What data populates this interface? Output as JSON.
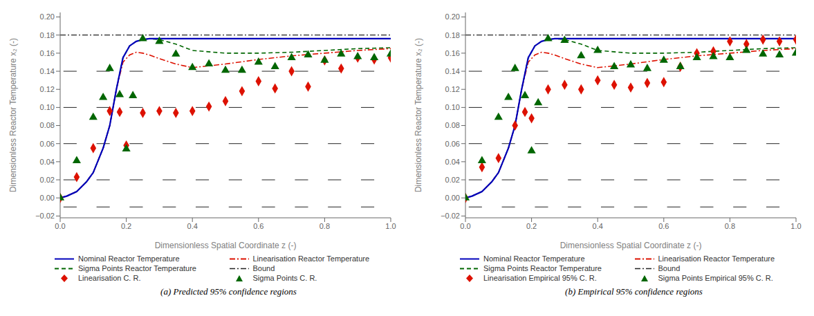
{
  "chart_data": [
    {
      "type": "line",
      "caption": "(a)  Predicted 95% confidence regions",
      "xlabel": "Dimensionless Spatial Coordinate z (-)",
      "ylabel": "Dimensionless Reactor Temperature x₂ (-)",
      "xlim": [
        0.0,
        1.0
      ],
      "ylim": [
        -0.022,
        0.205
      ],
      "xticks": [
        {
          "value": 0,
          "label": "0.0"
        },
        0.2,
        0.4,
        0.6,
        0.8,
        {
          "value": 1,
          "label": "1.0"
        }
      ],
      "yticks": [
        {
          "value": -0.02,
          "label": "−0.02"
        },
        {
          "value": 0,
          "label": "0.00"
        },
        0.02,
        0.04,
        0.06,
        0.08,
        {
          "value": 0.1,
          "label": "0.10"
        },
        0.12,
        0.14,
        0.16,
        0.18,
        {
          "value": 0.2,
          "label": "0.20"
        }
      ],
      "grid": false,
      "legend": "bottom",
      "series": [
        {
          "name": "Nominal Reactor Temperature",
          "type": "line",
          "color": "#0000BB",
          "line_style": "solid",
          "x": [
            0.0,
            0.02,
            0.05,
            0.08,
            0.1,
            0.13,
            0.15,
            0.17,
            0.19,
            0.21,
            0.23,
            0.25,
            0.27,
            0.3,
            0.35,
            0.4,
            0.5,
            0.6,
            0.7,
            0.8,
            0.9,
            1.0
          ],
          "values": [
            0.0,
            0.002,
            0.007,
            0.018,
            0.028,
            0.055,
            0.08,
            0.12,
            0.155,
            0.168,
            0.173,
            0.175,
            0.176,
            0.176,
            0.176,
            0.176,
            0.176,
            0.176,
            0.176,
            0.176,
            0.176,
            0.176
          ]
        },
        {
          "name": "Linearisation Reactor Temperature",
          "type": "line",
          "color": "#DD1100",
          "line_style": "dashdot",
          "x": [
            0.0,
            0.02,
            0.05,
            0.08,
            0.1,
            0.13,
            0.15,
            0.17,
            0.19,
            0.21,
            0.23,
            0.25,
            0.27,
            0.3,
            0.35,
            0.4,
            0.5,
            0.6,
            0.7,
            0.8,
            0.9,
            1.0
          ],
          "values": [
            0.0,
            0.002,
            0.007,
            0.018,
            0.028,
            0.055,
            0.08,
            0.12,
            0.15,
            0.158,
            0.161,
            0.16,
            0.158,
            0.154,
            0.148,
            0.144,
            0.148,
            0.153,
            0.157,
            0.16,
            0.163,
            0.165
          ]
        },
        {
          "name": "Sigma Points Reactor Temperature",
          "type": "line",
          "color": "#006600",
          "line_style": "dashed",
          "x": [
            0.0,
            0.02,
            0.05,
            0.08,
            0.1,
            0.13,
            0.15,
            0.17,
            0.19,
            0.21,
            0.23,
            0.25,
            0.27,
            0.3,
            0.35,
            0.4,
            0.5,
            0.6,
            0.7,
            0.8,
            0.9,
            1.0
          ],
          "values": [
            0.0,
            0.002,
            0.007,
            0.018,
            0.028,
            0.055,
            0.08,
            0.12,
            0.155,
            0.168,
            0.173,
            0.175,
            0.176,
            0.175,
            0.17,
            0.163,
            0.16,
            0.16,
            0.161,
            0.163,
            0.165,
            0.166
          ]
        },
        {
          "name": "Bound",
          "type": "bound",
          "color": "#222222",
          "line_style": "dashdot",
          "y": 0.18,
          "rows_y": [
            -0.01,
            0.02,
            0.06,
            0.1,
            0.14
          ],
          "dash_x": [
            [
              0.01,
              0.05
            ],
            [
              0.11,
              0.15
            ],
            [
              0.21,
              0.25
            ],
            [
              0.31,
              0.35
            ],
            [
              0.41,
              0.45
            ],
            [
              0.51,
              0.55
            ],
            [
              0.61,
              0.65
            ],
            [
              0.71,
              0.75
            ],
            [
              0.81,
              0.85
            ],
            [
              0.91,
              0.95
            ]
          ]
        },
        {
          "name": "Linearisation C. R.",
          "type": "scatter",
          "color": "#DD1100",
          "marker": "diamond",
          "x": [
            0.0,
            0.05,
            0.1,
            0.15,
            0.18,
            0.2,
            0.25,
            0.3,
            0.35,
            0.4,
            0.45,
            0.5,
            0.55,
            0.6,
            0.65,
            0.7,
            0.75,
            0.8,
            0.85,
            0.9,
            0.95,
            1.0
          ],
          "values": [
            0.0,
            0.023,
            0.055,
            0.096,
            0.095,
            0.058,
            0.094,
            0.096,
            0.094,
            0.096,
            0.101,
            0.107,
            0.118,
            0.129,
            0.121,
            0.14,
            0.123,
            0.152,
            0.143,
            0.155,
            0.153,
            0.155
          ]
        },
        {
          "name": "Sigma Points C. R.",
          "type": "scatter",
          "color": "#006600",
          "marker": "triangle",
          "x": [
            0.0,
            0.05,
            0.1,
            0.13,
            0.15,
            0.18,
            0.2,
            0.22,
            0.25,
            0.3,
            0.35,
            0.4,
            0.45,
            0.5,
            0.55,
            0.6,
            0.65,
            0.7,
            0.75,
            0.8,
            0.85,
            0.9,
            0.95,
            1.0
          ],
          "values": [
            0.0,
            0.041,
            0.089,
            0.111,
            0.143,
            0.114,
            0.054,
            0.113,
            0.176,
            0.173,
            0.159,
            0.144,
            0.148,
            0.141,
            0.141,
            0.15,
            0.145,
            0.155,
            0.158,
            0.152,
            0.159,
            0.156,
            0.155,
            0.159
          ]
        }
      ]
    },
    {
      "type": "line",
      "caption": "(b)  Empirical 95% confidence regions",
      "xlabel": "Dimensionless Spatial Coordinate z (-)",
      "ylabel": "Dimensionless Reactor Temperature x₂ (-)",
      "xlim": [
        0.0,
        1.0
      ],
      "ylim": [
        -0.022,
        0.205
      ],
      "xticks": [
        {
          "value": 0,
          "label": "0.0"
        },
        0.2,
        0.4,
        0.6,
        0.8,
        {
          "value": 1,
          "label": "1.0"
        }
      ],
      "yticks": [
        {
          "value": -0.02,
          "label": "−0.02"
        },
        {
          "value": 0,
          "label": "0.00"
        },
        0.02,
        0.04,
        0.06,
        0.08,
        {
          "value": 0.1,
          "label": "0.10"
        },
        0.12,
        0.14,
        0.16,
        0.18,
        {
          "value": 0.2,
          "label": "0.20"
        }
      ],
      "grid": false,
      "legend": "bottom",
      "series": [
        {
          "name": "Nominal Reactor Temperature",
          "type": "line",
          "color": "#0000BB",
          "line_style": "solid",
          "x": [
            0.0,
            0.02,
            0.05,
            0.08,
            0.1,
            0.13,
            0.15,
            0.17,
            0.19,
            0.21,
            0.23,
            0.25,
            0.27,
            0.3,
            0.35,
            0.4,
            0.5,
            0.6,
            0.7,
            0.8,
            0.9,
            1.0
          ],
          "values": [
            0.0,
            0.002,
            0.007,
            0.018,
            0.028,
            0.055,
            0.08,
            0.12,
            0.155,
            0.168,
            0.173,
            0.175,
            0.176,
            0.176,
            0.176,
            0.176,
            0.176,
            0.176,
            0.176,
            0.176,
            0.176,
            0.176
          ]
        },
        {
          "name": "Linearisation Reactor Temperature",
          "type": "line",
          "color": "#DD1100",
          "line_style": "dashdot",
          "x": [
            0.0,
            0.02,
            0.05,
            0.08,
            0.1,
            0.13,
            0.15,
            0.17,
            0.19,
            0.21,
            0.23,
            0.25,
            0.27,
            0.3,
            0.35,
            0.4,
            0.5,
            0.6,
            0.7,
            0.8,
            0.9,
            1.0
          ],
          "values": [
            0.0,
            0.002,
            0.007,
            0.018,
            0.028,
            0.055,
            0.08,
            0.12,
            0.15,
            0.158,
            0.161,
            0.16,
            0.158,
            0.154,
            0.148,
            0.144,
            0.148,
            0.153,
            0.157,
            0.16,
            0.163,
            0.165
          ]
        },
        {
          "name": "Sigma Points Reactor Temperature",
          "type": "line",
          "color": "#006600",
          "line_style": "dashed",
          "x": [
            0.0,
            0.02,
            0.05,
            0.08,
            0.1,
            0.13,
            0.15,
            0.17,
            0.19,
            0.21,
            0.23,
            0.25,
            0.27,
            0.3,
            0.35,
            0.4,
            0.5,
            0.6,
            0.7,
            0.8,
            0.9,
            1.0
          ],
          "values": [
            0.0,
            0.002,
            0.007,
            0.018,
            0.028,
            0.055,
            0.08,
            0.12,
            0.155,
            0.168,
            0.173,
            0.175,
            0.176,
            0.175,
            0.17,
            0.163,
            0.16,
            0.16,
            0.161,
            0.163,
            0.165,
            0.166
          ]
        },
        {
          "name": "Bound",
          "type": "bound",
          "color": "#222222",
          "line_style": "dashdot",
          "y": 0.18,
          "rows_y": [
            -0.01,
            0.02,
            0.06,
            0.1,
            0.14
          ],
          "dash_x": [
            [
              0.01,
              0.05
            ],
            [
              0.11,
              0.15
            ],
            [
              0.21,
              0.25
            ],
            [
              0.31,
              0.35
            ],
            [
              0.41,
              0.45
            ],
            [
              0.51,
              0.55
            ],
            [
              0.61,
              0.65
            ],
            [
              0.71,
              0.75
            ],
            [
              0.81,
              0.85
            ],
            [
              0.91,
              0.95
            ]
          ]
        },
        {
          "name": "Linearisation Empirical 95% C. R.",
          "type": "scatter",
          "color": "#DD1100",
          "marker": "diamond",
          "x": [
            0.0,
            0.05,
            0.1,
            0.15,
            0.18,
            0.2,
            0.25,
            0.3,
            0.35,
            0.4,
            0.45,
            0.5,
            0.55,
            0.6,
            0.65,
            0.7,
            0.75,
            0.8,
            0.85,
            0.9,
            0.95,
            1.0
          ],
          "values": [
            0.0,
            0.034,
            0.044,
            0.08,
            0.095,
            0.088,
            0.12,
            0.125,
            0.12,
            0.13,
            0.125,
            0.122,
            0.127,
            0.128,
            0.145,
            0.16,
            0.162,
            0.173,
            0.17,
            0.175,
            0.173,
            0.175
          ]
        },
        {
          "name": "Sigma Points Empirical 95% C. R.",
          "type": "scatter",
          "color": "#006600",
          "marker": "triangle",
          "x": [
            0.0,
            0.05,
            0.1,
            0.13,
            0.15,
            0.18,
            0.2,
            0.22,
            0.25,
            0.3,
            0.35,
            0.4,
            0.45,
            0.5,
            0.55,
            0.6,
            0.65,
            0.7,
            0.75,
            0.8,
            0.85,
            0.9,
            0.95,
            1.0
          ],
          "values": [
            0.0,
            0.041,
            0.089,
            0.111,
            0.143,
            0.113,
            0.052,
            0.105,
            0.176,
            0.174,
            0.157,
            0.163,
            0.145,
            0.147,
            0.143,
            0.152,
            0.145,
            0.155,
            0.156,
            0.155,
            0.163,
            0.159,
            0.158,
            0.16
          ]
        }
      ]
    }
  ]
}
